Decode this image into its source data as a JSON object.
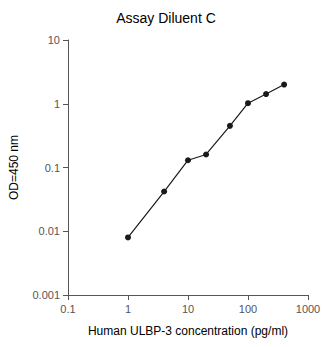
{
  "chart_data": {
    "type": "line",
    "title": "Assay Diluent C",
    "xlabel": "Human ULBP-3 concentration (pg/ml)",
    "ylabel": "OD=450 nm",
    "x": [
      1,
      4,
      10,
      20,
      50,
      100,
      200,
      400
    ],
    "values": [
      0.008,
      0.042,
      0.13,
      0.16,
      0.45,
      1.02,
      1.42,
      2.0
    ],
    "color": "#1a1a1a",
    "marker": "circle",
    "log": true,
    "grid": false,
    "xlim": [
      0.1,
      1000
    ],
    "xticks": [
      0.1,
      1,
      10,
      100,
      1000
    ],
    "ylim": [
      0.001,
      10
    ],
    "yticks": [
      0.001,
      0.01,
      0.1,
      1,
      10
    ]
  }
}
